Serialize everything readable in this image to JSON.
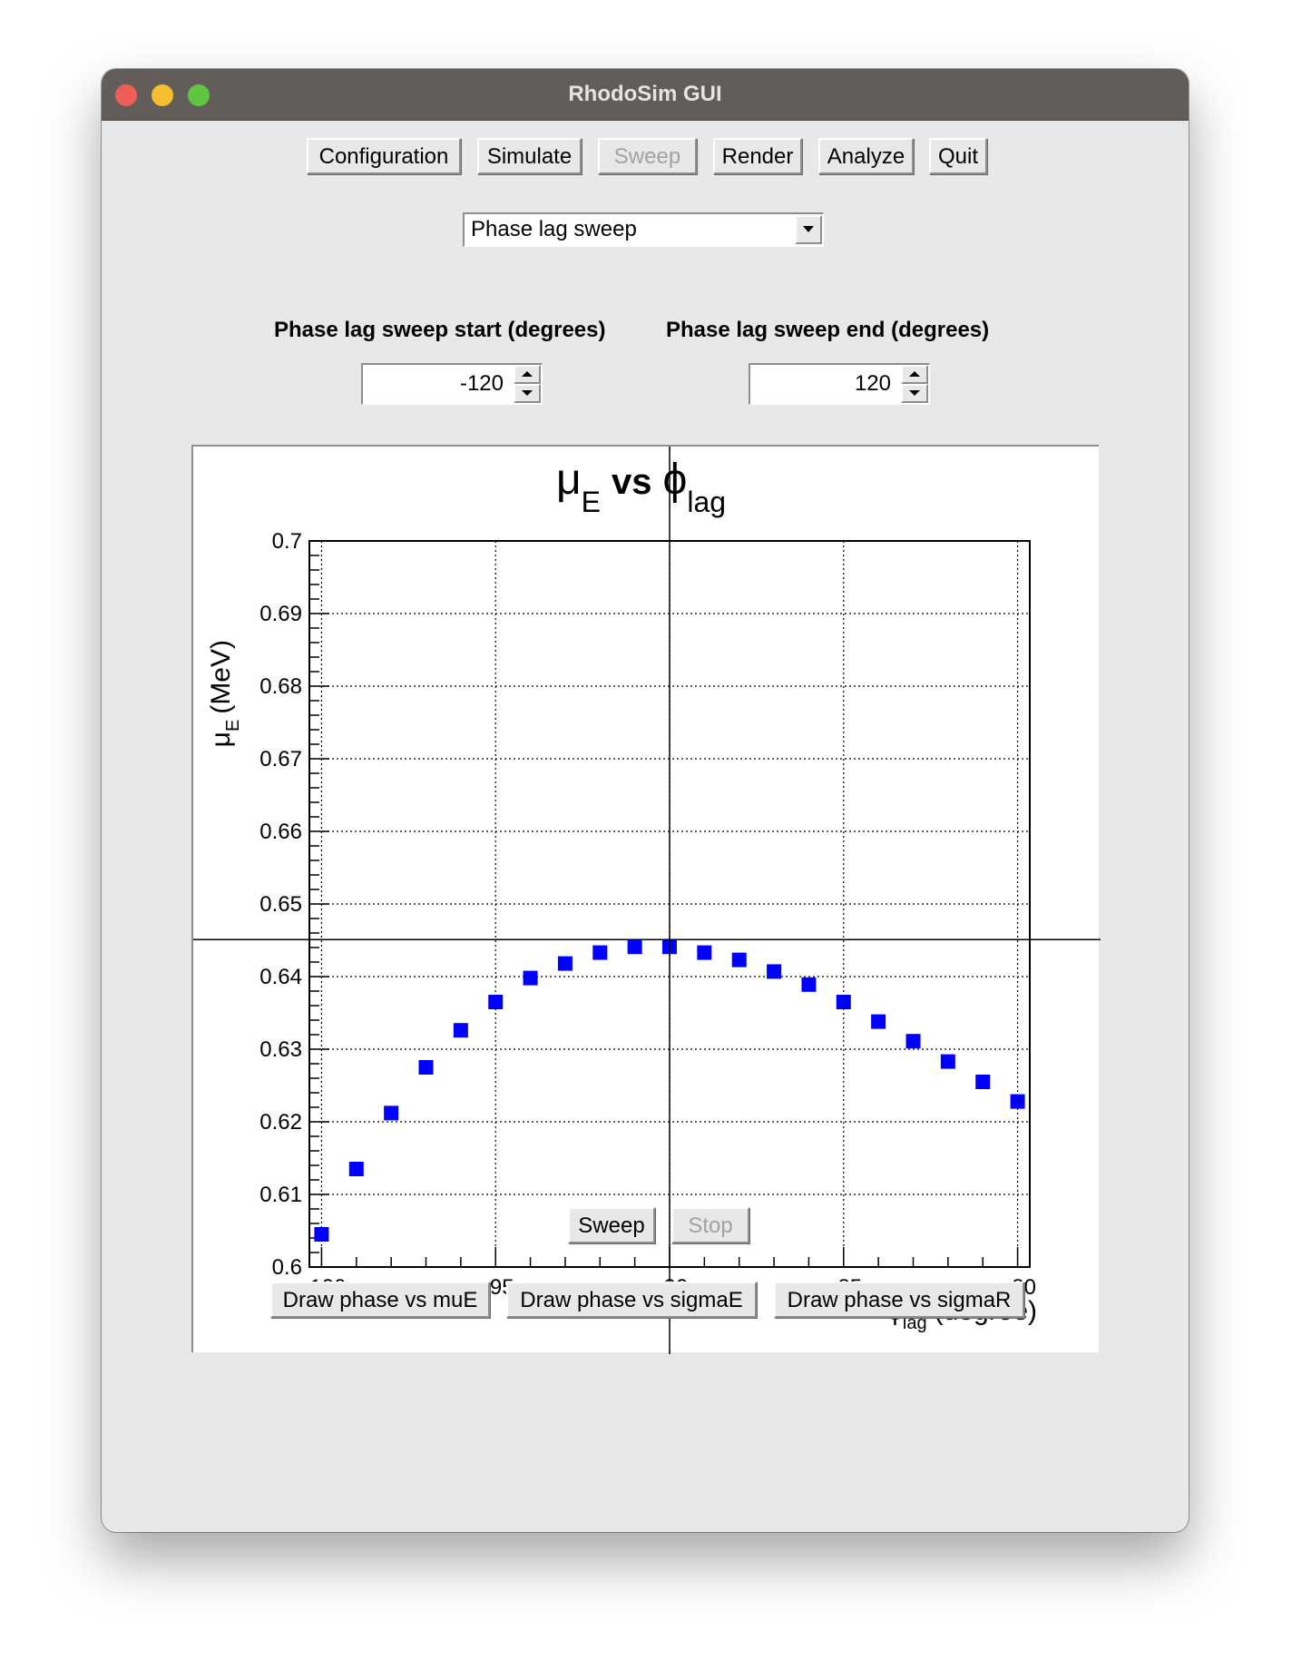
{
  "window": {
    "title": "RhodoSim GUI"
  },
  "toolbar": {
    "configuration": "Configuration",
    "simulate": "Simulate",
    "sweep": "Sweep",
    "render": "Render",
    "analyze": "Analyze",
    "quit": "Quit"
  },
  "sweep_type": {
    "selected": "Phase lag sweep"
  },
  "params": {
    "start_label": "Phase lag sweep start (degrees)",
    "start_value": "-120",
    "end_label": "Phase lag sweep end (degrees)",
    "end_value": "120"
  },
  "controls": {
    "sweep": "Sweep",
    "stop": "Stop"
  },
  "draw_buttons": {
    "muE": "Draw phase vs muE",
    "sigmaE": "Draw phase vs sigmaE",
    "sigmaR": "Draw phase vs sigmaR"
  },
  "chart_data": {
    "type": "scatter",
    "title": {
      "main": "μ",
      "main_sub": "E",
      "vs": "vs",
      "var": "ϕ",
      "var_sub": "lag"
    },
    "xlabel": {
      "sym": "ϕ",
      "sub": "lag",
      "unit": "(degree)"
    },
    "ylabel": {
      "sym": "μ",
      "sub": "E",
      "unit": "(MeV)"
    },
    "xlim": [
      -100.35,
      -79.65
    ],
    "ylim": [
      0.6,
      0.7
    ],
    "x_ticks": [
      -100,
      -95,
      -90,
      -85,
      -80
    ],
    "x_tick_labels": [
      "−100",
      "−95",
      "−90",
      "−85",
      "−80"
    ],
    "y_ticks": [
      0.6,
      0.61,
      0.62,
      0.63,
      0.64,
      0.65,
      0.66,
      0.67,
      0.68,
      0.69,
      0.7
    ],
    "y_tick_labels": [
      "0.6",
      "0.61",
      "0.62",
      "0.63",
      "0.64",
      "0.65",
      "0.66",
      "0.67",
      "0.68",
      "0.69",
      "0.7"
    ],
    "grid": true,
    "marker_color": "#0000ff",
    "crosshair": {
      "x": -90,
      "y": 0.6451
    },
    "series": [
      {
        "x": [
          -100,
          -99,
          -98,
          -97,
          -96,
          -95,
          -94,
          -93,
          -92,
          -91,
          -90,
          -89,
          -88,
          -87,
          -86,
          -85,
          -84,
          -83,
          -82,
          -81,
          -80
        ],
        "y": [
          0.6045,
          0.6135,
          0.6212,
          0.6275,
          0.6326,
          0.6365,
          0.6398,
          0.6418,
          0.6433,
          0.6441,
          0.6441,
          0.6433,
          0.6423,
          0.6407,
          0.6389,
          0.6365,
          0.6338,
          0.6311,
          0.6283,
          0.6255,
          0.6228
        ]
      }
    ]
  }
}
